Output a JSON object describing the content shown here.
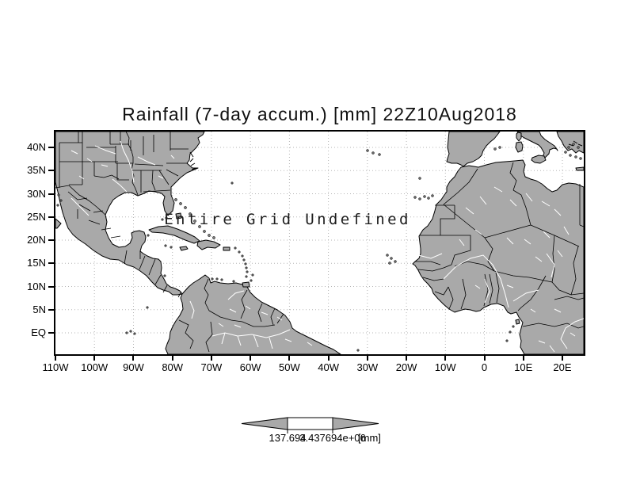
{
  "title": "Rainfall (7-day accum.) [mm] 22Z10Aug2018",
  "annotation": "Entire Grid Undefined",
  "axes": {
    "lat_labels": [
      "40N",
      "35N",
      "30N",
      "25N",
      "20N",
      "15N",
      "10N",
      "5N",
      "EQ"
    ],
    "lon_labels": [
      "110W",
      "100W",
      "90W",
      "80W",
      "70W",
      "60W",
      "50W",
      "40W",
      "30W",
      "20W",
      "10W",
      "0",
      "10E",
      "20E"
    ]
  },
  "colorbar": {
    "left_label": "137.694",
    "right_label": "3.437694e+06",
    "units": "[mm]"
  },
  "colors": {
    "land": "#a9a9a9",
    "ocean": "#ffffff",
    "gridline": "#b5b5b5",
    "coastline": "#000000",
    "text": "#000000"
  },
  "chart_data": {
    "type": "heatmap",
    "title": "Rainfall (7-day accum.) [mm] 22Z10Aug2018",
    "variable": "Rainfall (7-day accum.)",
    "units": "mm",
    "valid_time": "22Z10Aug2018",
    "status_annotation": "Entire Grid Undefined",
    "values": "undefined - no data shaded on map",
    "x_axis": {
      "tick_labels": [
        "110W",
        "100W",
        "90W",
        "80W",
        "70W",
        "60W",
        "50W",
        "40W",
        "30W",
        "20W",
        "10W",
        "0",
        "10E",
        "20E"
      ]
    },
    "y_axis": {
      "tick_labels": [
        "40N",
        "35N",
        "30N",
        "25N",
        "20N",
        "15N",
        "10N",
        "5N",
        "EQ"
      ]
    },
    "grid": {
      "visible": true,
      "style": "dashed",
      "lon_step_deg": 10,
      "lat_step_deg": 5
    },
    "legend_position": "bottom-colorbar",
    "colorbar_tick_labels": [
      "137.694",
      "3.437694e+06"
    ],
    "basemap": "gray land, white ocean, black coastlines and political boundaries"
  }
}
